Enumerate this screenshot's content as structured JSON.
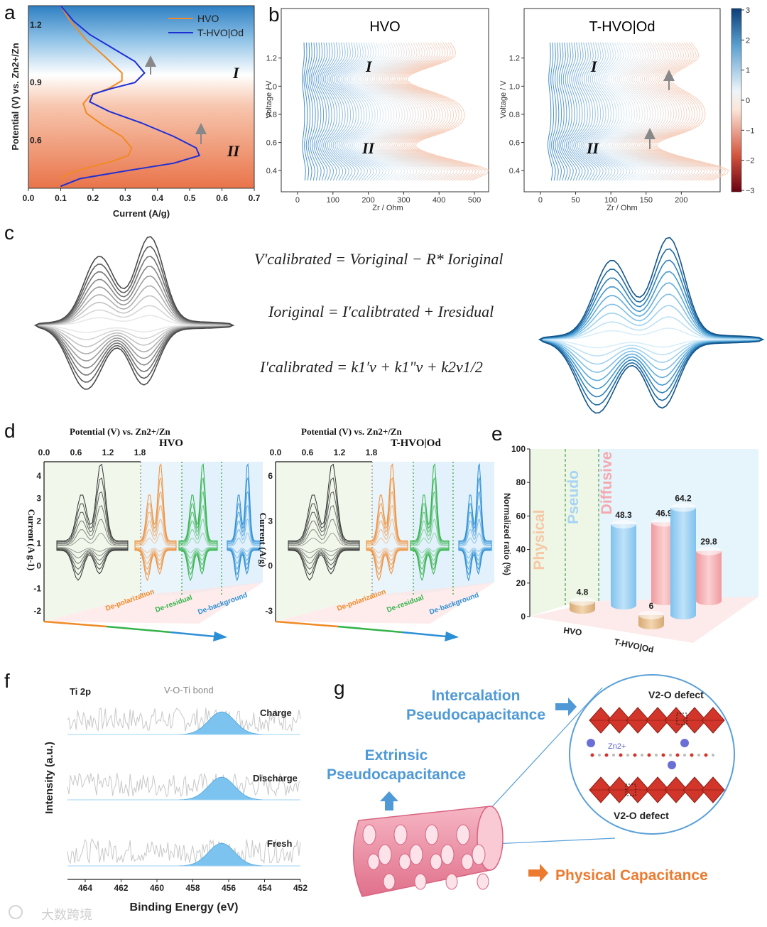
{
  "panels": {
    "a": "a",
    "b": "b",
    "c": "c",
    "d": "d",
    "e": "e",
    "f": "f",
    "g": "g"
  },
  "panel_a": {
    "ylabel": "Potential (V) vs. Zn2+/Zn",
    "xlabel": "Current (A/g)",
    "legend": [
      "HVO",
      "T-HVO|Od"
    ],
    "roman": [
      "I",
      "II"
    ]
  },
  "panel_b": {
    "left_title": "HVO",
    "right_title": "T-HVO|Od",
    "ylabel": "Voltage / V",
    "xlabel": "Zr / Ohm",
    "roman": [
      "I",
      "II"
    ],
    "colorbar_ticks": [
      "3",
      "2",
      "1",
      "0",
      "−1",
      "−2",
      "−3"
    ]
  },
  "panel_c": {
    "eq1": "V′calibrated = Voriginal − R* Ioriginal",
    "eq2": "Ioriginal = I′calibtrated + Iresidual",
    "eq3": "I′calibrated = k1′v + k1\"v + k2v1/2"
  },
  "panel_d": {
    "left_title": "HVO",
    "right_title": "T-HVO|Od",
    "top_axis_label": "Potential (V) vs. Zn2+/Zn",
    "top_ticks": [
      "0.0",
      "0.6",
      "1.2",
      "1.8"
    ],
    "left_ylabel": "Current (A g-1)",
    "right_ylabel": "Current (A/g)",
    "steps": [
      "De-polarization",
      "De-residual",
      "De-background"
    ]
  },
  "panel_e": {
    "ylabel": "Normalized ratio (%)",
    "regions": [
      "Physical",
      "Pseudo",
      "Diffusive"
    ]
  },
  "panel_f": {
    "title": "Ti 2p",
    "bond": "V-O-Ti bond",
    "states": [
      "Charge",
      "Discharge",
      "Fresh"
    ],
    "ylabel": "Intensity (a.u.)",
    "xlabel": "Binding Energy (eV)",
    "xticks": [
      "464",
      "462",
      "460",
      "458",
      "456",
      "454",
      "452"
    ]
  },
  "panel_g": {
    "intercalation": [
      "Intercalation",
      "Pseudocapacitance"
    ],
    "extrinsic": [
      "Extrinsic",
      "Pseudocapacitance"
    ],
    "physical": "Physical Capacitance",
    "defect_top": "V2-O defect",
    "defect_bottom": "V2-O defect",
    "ion": "Zn2+"
  },
  "watermark": "大数跨境",
  "chart_data": [
    {
      "id": "a",
      "type": "line",
      "xlabel": "Current (A/g)",
      "ylabel": "Potential (V) vs. Zn2+/Zn",
      "xlim": [
        0.0,
        0.7
      ],
      "ylim": [
        0.35,
        1.3
      ],
      "xticks": [
        "0.0",
        "0.1",
        "0.2",
        "0.3",
        "0.4",
        "0.5",
        "0.6",
        "0.7"
      ],
      "yticks": [
        {
          "label": "1.2",
          "v": 1.2
        },
        {
          "label": "0.9",
          "v": 0.9
        },
        {
          "label": "0.6",
          "v": 0.6
        }
      ],
      "series": [
        {
          "name": "HVO",
          "color": "#f08a24",
          "points": [
            [
              0.1,
              1.3
            ],
            [
              0.13,
              1.22
            ],
            [
              0.18,
              1.12
            ],
            [
              0.24,
              1.03
            ],
            [
              0.29,
              0.95
            ],
            [
              0.29,
              0.91
            ],
            [
              0.25,
              0.87
            ],
            [
              0.19,
              0.83
            ],
            [
              0.17,
              0.79
            ],
            [
              0.18,
              0.74
            ],
            [
              0.23,
              0.68
            ],
            [
              0.29,
              0.62
            ],
            [
              0.32,
              0.56
            ],
            [
              0.31,
              0.52
            ],
            [
              0.26,
              0.49
            ],
            [
              0.19,
              0.46
            ],
            [
              0.13,
              0.43
            ],
            [
              0.1,
              0.4
            ]
          ]
        },
        {
          "name": "T-HVO|Od",
          "color": "#1e2fd6",
          "points": [
            [
              0.1,
              1.3
            ],
            [
              0.14,
              1.22
            ],
            [
              0.19,
              1.15
            ],
            [
              0.26,
              1.08
            ],
            [
              0.33,
              1.01
            ],
            [
              0.36,
              0.95
            ],
            [
              0.33,
              0.9
            ],
            [
              0.26,
              0.87
            ],
            [
              0.2,
              0.84
            ],
            [
              0.19,
              0.8
            ],
            [
              0.25,
              0.75
            ],
            [
              0.35,
              0.69
            ],
            [
              0.45,
              0.62
            ],
            [
              0.52,
              0.56
            ],
            [
              0.53,
              0.52
            ],
            [
              0.45,
              0.48
            ],
            [
              0.3,
              0.44
            ],
            [
              0.16,
              0.4
            ],
            [
              0.1,
              0.36
            ]
          ]
        }
      ]
    },
    {
      "id": "b-left",
      "type": "line",
      "title": "HVO",
      "xlabel": "Zr / Ohm",
      "ylabel": "Voltage / V",
      "xlim": [
        -10,
        520
      ],
      "ylim": [
        0.3,
        1.35
      ],
      "xticks": [
        0,
        100,
        200,
        300,
        400,
        500
      ],
      "yticks": [
        "0.4",
        "0.6",
        "0.8",
        "1.0",
        "1.2"
      ],
      "zr_max_range": [
        20,
        475
      ]
    },
    {
      "id": "b-right",
      "type": "line",
      "title": "T-HVO|Od",
      "xlabel": "Zr / Ohm",
      "ylabel": "Voltage / V",
      "xlim": [
        -5,
        245
      ],
      "ylim": [
        0.3,
        1.35
      ],
      "xticks": [
        0,
        50,
        100,
        150,
        200
      ],
      "yticks": [
        "0.4",
        "0.6",
        "0.8",
        "1.0",
        "1.2"
      ],
      "zr_max_range": [
        15,
        235
      ]
    },
    {
      "id": "e",
      "type": "bar",
      "ylabel": "Normalized ratio (%)",
      "ylim": [
        0,
        100
      ],
      "yticks": [
        0,
        20,
        40,
        60,
        80,
        100
      ],
      "categories": [
        "HVO",
        "T-HVO|Od"
      ],
      "series": [
        {
          "name": "Physical",
          "values": [
            4.8,
            6
          ]
        },
        {
          "name": "Pseudo",
          "values": [
            48.3,
            64.2
          ]
        },
        {
          "name": "Diffusive",
          "values": [
            46.9,
            29.8
          ]
        }
      ]
    }
  ]
}
